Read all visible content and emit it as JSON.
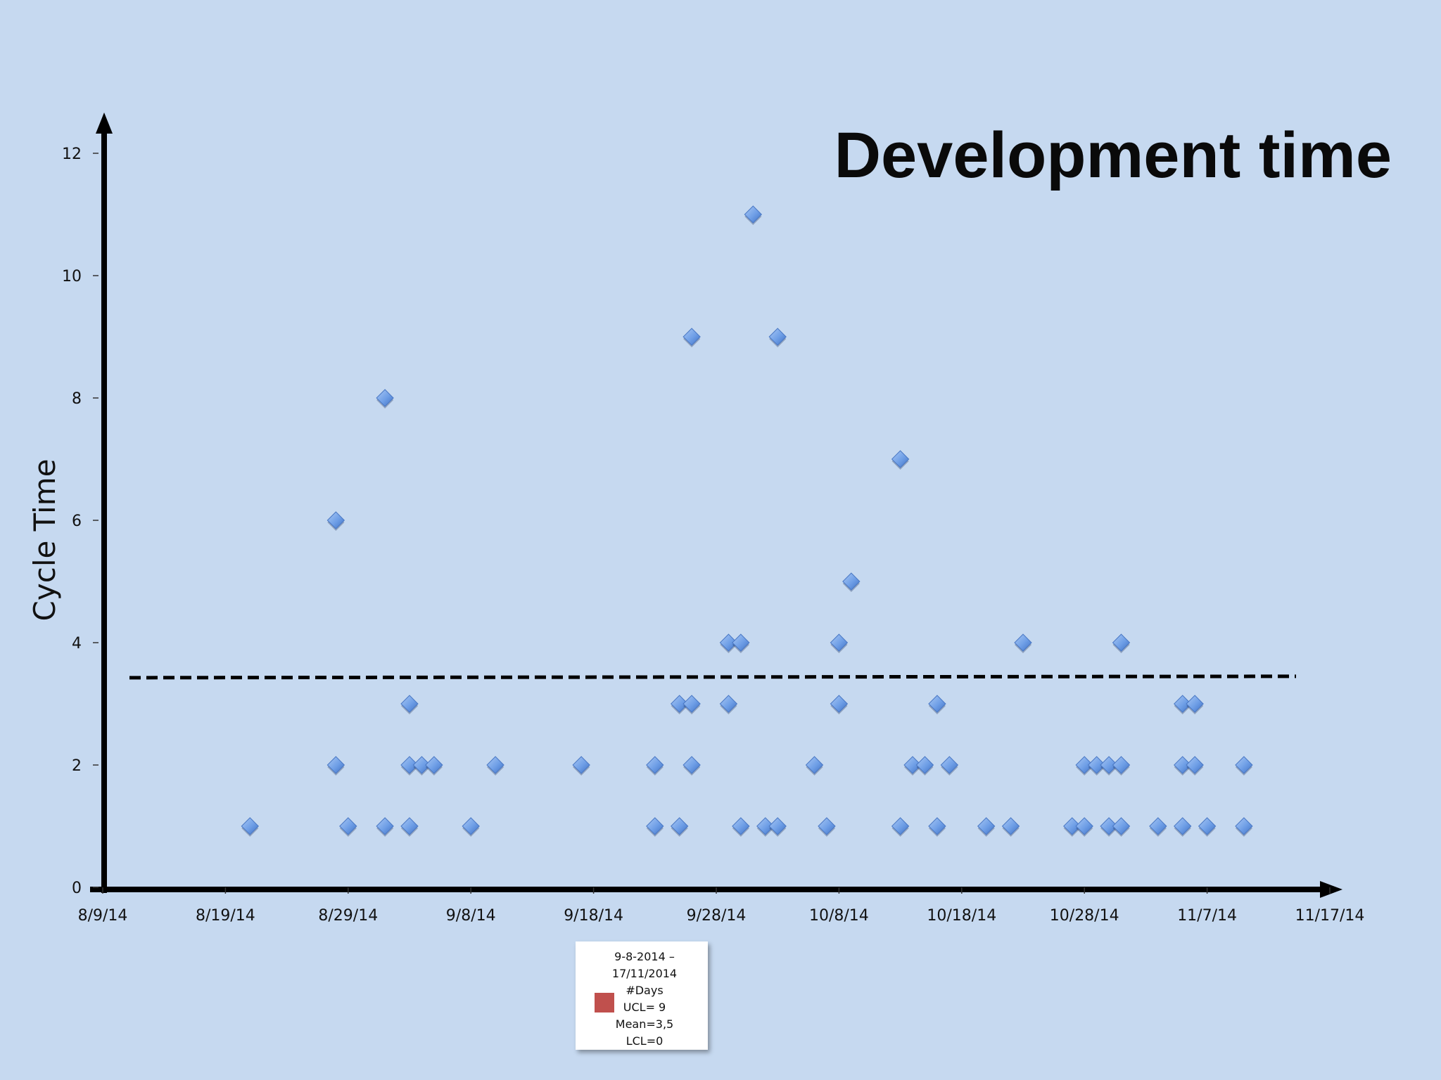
{
  "chart_data": {
    "type": "scatter",
    "title": "Development time",
    "ylabel": "Cycle Time",
    "xlabel": "",
    "y_ticks": [
      0,
      2,
      4,
      6,
      8,
      10,
      12
    ],
    "x_ticks": [
      "8/9/14",
      "8/19/14",
      "8/29/14",
      "9/8/14",
      "9/18/14",
      "9/28/14",
      "10/8/14",
      "10/18/14",
      "10/28/14",
      "11/7/14",
      "11/17/14"
    ],
    "xlim": [
      "2014-08-09",
      "2014-11-17"
    ],
    "ylim": [
      0,
      12
    ],
    "grid": false,
    "mean_line": 3.45,
    "series": [
      {
        "marker": "diamond",
        "color": "#6e9ee6",
        "points": [
          [
            "2014-08-21",
            1
          ],
          [
            "2014-08-28",
            6
          ],
          [
            "2014-08-28",
            2
          ],
          [
            "2014-08-29",
            1
          ],
          [
            "2014-09-01",
            8
          ],
          [
            "2014-09-01",
            1
          ],
          [
            "2014-09-03",
            3
          ],
          [
            "2014-09-03",
            2
          ],
          [
            "2014-09-03",
            1
          ],
          [
            "2014-09-04",
            2
          ],
          [
            "2014-09-05",
            2
          ],
          [
            "2014-09-08",
            1
          ],
          [
            "2014-09-10",
            2
          ],
          [
            "2014-09-17",
            2
          ],
          [
            "2014-09-23",
            2
          ],
          [
            "2014-09-23",
            1
          ],
          [
            "2014-09-25",
            3
          ],
          [
            "2014-09-25",
            1
          ],
          [
            "2014-09-26",
            9
          ],
          [
            "2014-09-26",
            3
          ],
          [
            "2014-09-26",
            2
          ],
          [
            "2014-09-29",
            4
          ],
          [
            "2014-09-29",
            3
          ],
          [
            "2014-09-30",
            4
          ],
          [
            "2014-09-30",
            1
          ],
          [
            "2014-10-01",
            11
          ],
          [
            "2014-10-02",
            1
          ],
          [
            "2014-10-03",
            9
          ],
          [
            "2014-10-03",
            1
          ],
          [
            "2014-10-06",
            2
          ],
          [
            "2014-10-07",
            1
          ],
          [
            "2014-10-08",
            4
          ],
          [
            "2014-10-08",
            3
          ],
          [
            "2014-10-09",
            5
          ],
          [
            "2014-10-13",
            7
          ],
          [
            "2014-10-13",
            1
          ],
          [
            "2014-10-14",
            2
          ],
          [
            "2014-10-15",
            2
          ],
          [
            "2014-10-16",
            3
          ],
          [
            "2014-10-16",
            1
          ],
          [
            "2014-10-17",
            2
          ],
          [
            "2014-10-20",
            1
          ],
          [
            "2014-10-22",
            1
          ],
          [
            "2014-10-23",
            4
          ],
          [
            "2014-10-27",
            1
          ],
          [
            "2014-10-28",
            2
          ],
          [
            "2014-10-28",
            1
          ],
          [
            "2014-10-29",
            2
          ],
          [
            "2014-10-30",
            2
          ],
          [
            "2014-10-30",
            1
          ],
          [
            "2014-10-31",
            4
          ],
          [
            "2014-10-31",
            2
          ],
          [
            "2014-10-31",
            1
          ],
          [
            "2014-11-03",
            1
          ],
          [
            "2014-11-05",
            3
          ],
          [
            "2014-11-05",
            2
          ],
          [
            "2014-11-05",
            1
          ],
          [
            "2014-11-06",
            3
          ],
          [
            "2014-11-06",
            2
          ],
          [
            "2014-11-07",
            1
          ],
          [
            "2014-11-10",
            2
          ],
          [
            "2014-11-10",
            1
          ]
        ]
      }
    ]
  },
  "legend": {
    "lines": [
      "9-8-2014 –",
      "17/11/2014",
      "#Days",
      "UCL= 9",
      "Mean=3,5",
      "LCL=0"
    ],
    "swatch_color": "#c0504d"
  }
}
